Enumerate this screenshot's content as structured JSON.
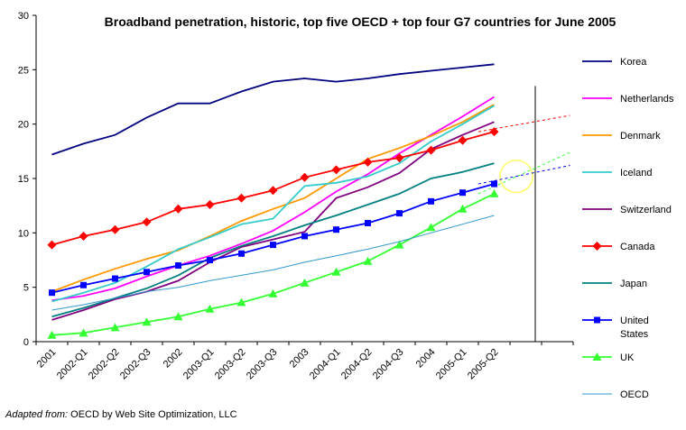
{
  "chart_data": {
    "type": "line",
    "title": "Broadband penetration, historic, top five OECD + top four G7 countries for June 2005",
    "xlabel": "",
    "ylabel": "",
    "ylim": [
      0,
      30
    ],
    "yticks": [
      0,
      5,
      10,
      15,
      20,
      25,
      30
    ],
    "grid": false,
    "legend_position": "right",
    "categories": [
      "2001",
      "2002-Q1",
      "2002-Q2",
      "2002-Q3",
      "2002",
      "2003-Q1",
      "2003-Q2",
      "2003-Q3",
      "2003",
      "2004-Q1",
      "2004-Q2",
      "2004-Q3",
      "2004",
      "2005-Q1",
      "2005-Q2"
    ],
    "series": [
      {
        "name": "Korea",
        "color": "#000080",
        "marker": "none",
        "values": [
          17.2,
          18.2,
          19.0,
          20.6,
          21.9,
          21.9,
          23.0,
          23.9,
          24.2,
          23.9,
          24.2,
          24.6,
          24.9,
          25.2,
          25.5
        ]
      },
      {
        "name": "Netherlands",
        "color": "#ff00ff",
        "marker": "none",
        "values": [
          3.8,
          4.2,
          4.9,
          6.0,
          7.0,
          7.9,
          9.0,
          10.2,
          11.9,
          13.8,
          15.4,
          17.3,
          19.0,
          20.7,
          22.5
        ]
      },
      {
        "name": "Denmark",
        "color": "#ff9900",
        "marker": "none",
        "values": [
          4.6,
          5.7,
          6.7,
          7.6,
          8.4,
          9.7,
          11.1,
          12.2,
          13.2,
          15.0,
          16.8,
          17.8,
          18.9,
          20.2,
          21.8
        ]
      },
      {
        "name": "Iceland",
        "color": "#33cccc",
        "marker": "none",
        "values": [
          3.7,
          4.5,
          5.4,
          6.9,
          8.5,
          9.6,
          10.8,
          11.3,
          14.3,
          14.6,
          15.2,
          16.4,
          18.4,
          20.0,
          21.7
        ]
      },
      {
        "name": "Switzerland",
        "color": "#800080",
        "marker": "none",
        "values": [
          2.0,
          2.9,
          3.9,
          4.6,
          5.6,
          7.3,
          8.7,
          9.4,
          10.1,
          13.2,
          14.2,
          15.5,
          17.7,
          19.0,
          20.2
        ]
      },
      {
        "name": "Canada",
        "color": "#ff0000",
        "marker": "diamond",
        "values": [
          8.9,
          9.7,
          10.3,
          11.0,
          12.2,
          12.6,
          13.2,
          13.9,
          15.1,
          15.8,
          16.5,
          16.9,
          17.6,
          18.5,
          19.3
        ]
      },
      {
        "name": "Japan",
        "color": "#008080",
        "marker": "none",
        "values": [
          2.3,
          3.1,
          4.0,
          4.9,
          6.1,
          7.7,
          8.8,
          9.7,
          10.7,
          11.6,
          12.6,
          13.6,
          15.0,
          15.6,
          16.4
        ]
      },
      {
        "name": "United States",
        "color": "#0000ff",
        "marker": "square",
        "values": [
          4.5,
          5.2,
          5.8,
          6.4,
          7.0,
          7.5,
          8.1,
          8.9,
          9.7,
          10.3,
          10.9,
          11.8,
          12.9,
          13.7,
          14.5
        ]
      },
      {
        "name": "UK",
        "color": "#33ff33",
        "marker": "triangle",
        "values": [
          0.6,
          0.8,
          1.3,
          1.8,
          2.3,
          3.0,
          3.6,
          4.4,
          5.4,
          6.4,
          7.4,
          8.9,
          10.5,
          12.2,
          13.6
        ]
      },
      {
        "name": "OECD",
        "color": "#3399cc",
        "marker": "none",
        "values": [
          2.9,
          3.4,
          4.0,
          4.6,
          5.0,
          5.6,
          6.1,
          6.6,
          7.3,
          7.9,
          8.5,
          9.2,
          10.0,
          10.8,
          11.6
        ]
      }
    ],
    "trend_extensions": [
      {
        "series": "Canada",
        "color": "#ff0000",
        "from": [
          14,
          19.3
        ],
        "to": [
          16.9,
          20.8
        ]
      },
      {
        "series": "UK",
        "color": "#33ff33",
        "from": [
          14,
          13.6
        ],
        "to": [
          16.9,
          17.4
        ]
      },
      {
        "series": "United States",
        "color": "#0000ff",
        "from": [
          14,
          14.5
        ],
        "to": [
          16.9,
          16.2
        ]
      }
    ],
    "vertical_marker_x": 15.8,
    "highlight_circle": {
      "x": 15.2,
      "y": 15.2,
      "color": "#ffff66"
    },
    "x_slots": 17
  },
  "source_note": {
    "prefix": "Adapted from:",
    "text": " OECD by Web Site Optimization, LLC"
  }
}
